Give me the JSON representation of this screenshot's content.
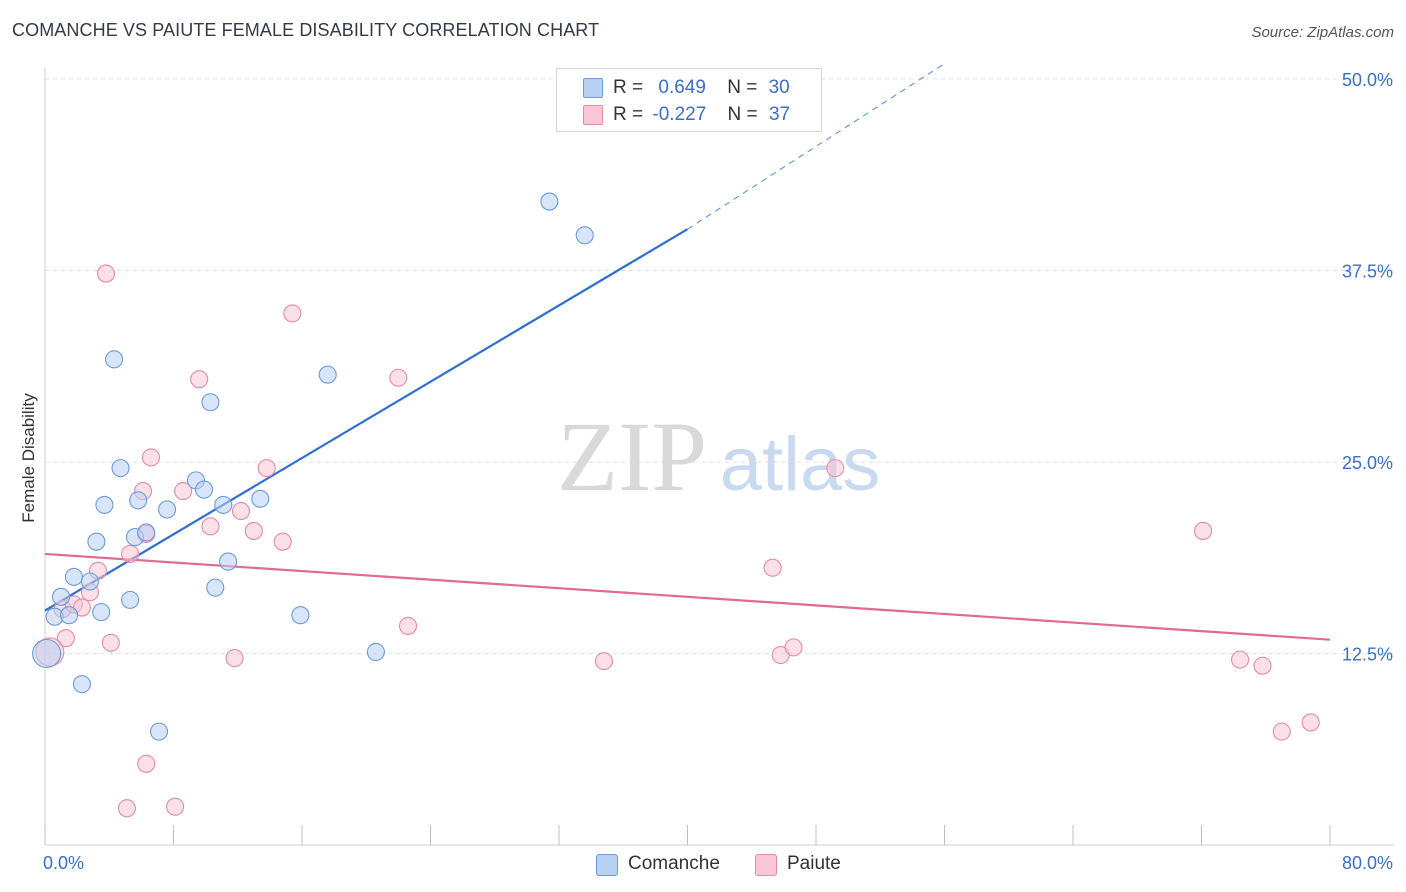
{
  "header": {
    "title": "COMANCHE VS PAIUTE FEMALE DISABILITY CORRELATION CHART",
    "source": "Source: ZipAtlas.com"
  },
  "legend": {
    "rows": [
      {
        "r_label": "R =",
        "r_value": "0.649",
        "n_label": "N =",
        "n_value": "30"
      },
      {
        "r_label": "R =",
        "r_value": "-0.227",
        "n_label": "N =",
        "n_value": "37"
      }
    ],
    "bottom": [
      "Comanche",
      "Paiute"
    ]
  },
  "watermark": {
    "part1": "ZIP",
    "part2": "atlas"
  },
  "chart_data": {
    "type": "scatter",
    "title": "COMANCHE VS PAIUTE FEMALE DISABILITY CORRELATION CHART",
    "xlabel": "",
    "ylabel": "Female Disability",
    "xlim": [
      0,
      80
    ],
    "ylim": [
      0,
      50
    ],
    "x_tick_labels": [
      "0.0%",
      "80.0%"
    ],
    "y_ticks": [
      12.5,
      25.0,
      37.5,
      50.0
    ],
    "y_tick_labels": [
      "12.5%",
      "25.0%",
      "37.5%",
      "50.0%"
    ],
    "grid": true,
    "colors": {
      "comanche_fill": "#b8d0f2",
      "comanche_stroke": "#6b9bd8",
      "comanche_line": "#2e6fd0",
      "paiute_fill": "#f8c6d6",
      "paiute_stroke": "#e58aa8",
      "paiute_line": "#e06a94",
      "axis_label": "#3a6fc4"
    },
    "series": [
      {
        "name": "Comanche",
        "r": 0.649,
        "n": 30,
        "points": [
          [
            0.6,
            14.9
          ],
          [
            1.0,
            16.2
          ],
          [
            1.5,
            15.0
          ],
          [
            1.8,
            17.5
          ],
          [
            2.3,
            10.5
          ],
          [
            2.8,
            17.2
          ],
          [
            3.2,
            19.8
          ],
          [
            3.5,
            15.2
          ],
          [
            3.7,
            22.2
          ],
          [
            4.3,
            31.7
          ],
          [
            4.7,
            24.6
          ],
          [
            5.3,
            16.0
          ],
          [
            5.6,
            20.1
          ],
          [
            5.8,
            22.5
          ],
          [
            6.3,
            20.4
          ],
          [
            7.1,
            7.4
          ],
          [
            7.6,
            21.9
          ],
          [
            9.4,
            23.8
          ],
          [
            9.9,
            23.2
          ],
          [
            10.3,
            28.9
          ],
          [
            10.6,
            16.8
          ],
          [
            11.1,
            22.2
          ],
          [
            11.4,
            18.5
          ],
          [
            13.4,
            22.6
          ],
          [
            15.9,
            15.0
          ],
          [
            17.6,
            30.7
          ],
          [
            20.6,
            12.6
          ],
          [
            31.4,
            42.0
          ],
          [
            33.6,
            39.8
          ],
          [
            0.1,
            12.5
          ]
        ],
        "trend": {
          "x": [
            0,
            40
          ],
          "y": [
            15.3,
            40.2
          ],
          "dashed_to": [
            56,
            51
          ]
        }
      },
      {
        "name": "Paiute",
        "r": -0.227,
        "n": 37,
        "points": [
          [
            1.1,
            15.4
          ],
          [
            1.3,
            13.5
          ],
          [
            1.8,
            15.7
          ],
          [
            2.3,
            15.5
          ],
          [
            2.8,
            16.5
          ],
          [
            3.3,
            17.9
          ],
          [
            3.8,
            37.3
          ],
          [
            4.1,
            13.2
          ],
          [
            5.1,
            2.4
          ],
          [
            5.3,
            19.0
          ],
          [
            6.1,
            23.1
          ],
          [
            6.3,
            20.3
          ],
          [
            6.3,
            5.3
          ],
          [
            6.6,
            25.3
          ],
          [
            8.1,
            2.5
          ],
          [
            8.6,
            23.1
          ],
          [
            9.6,
            30.4
          ],
          [
            10.3,
            20.8
          ],
          [
            11.8,
            12.2
          ],
          [
            12.2,
            21.8
          ],
          [
            13.0,
            20.5
          ],
          [
            13.8,
            24.6
          ],
          [
            14.8,
            19.8
          ],
          [
            15.4,
            34.7
          ],
          [
            22.0,
            30.5
          ],
          [
            22.6,
            14.3
          ],
          [
            34.8,
            12.0
          ],
          [
            45.3,
            18.1
          ],
          [
            45.8,
            12.4
          ],
          [
            46.6,
            12.9
          ],
          [
            49.2,
            24.6
          ],
          [
            72.1,
            20.5
          ],
          [
            74.4,
            12.1
          ],
          [
            75.8,
            11.7
          ],
          [
            77.0,
            7.4
          ],
          [
            78.8,
            8.0
          ],
          [
            0.3,
            12.6
          ]
        ],
        "trend": {
          "x": [
            0,
            80
          ],
          "y": [
            19.0,
            13.4
          ]
        }
      }
    ]
  }
}
